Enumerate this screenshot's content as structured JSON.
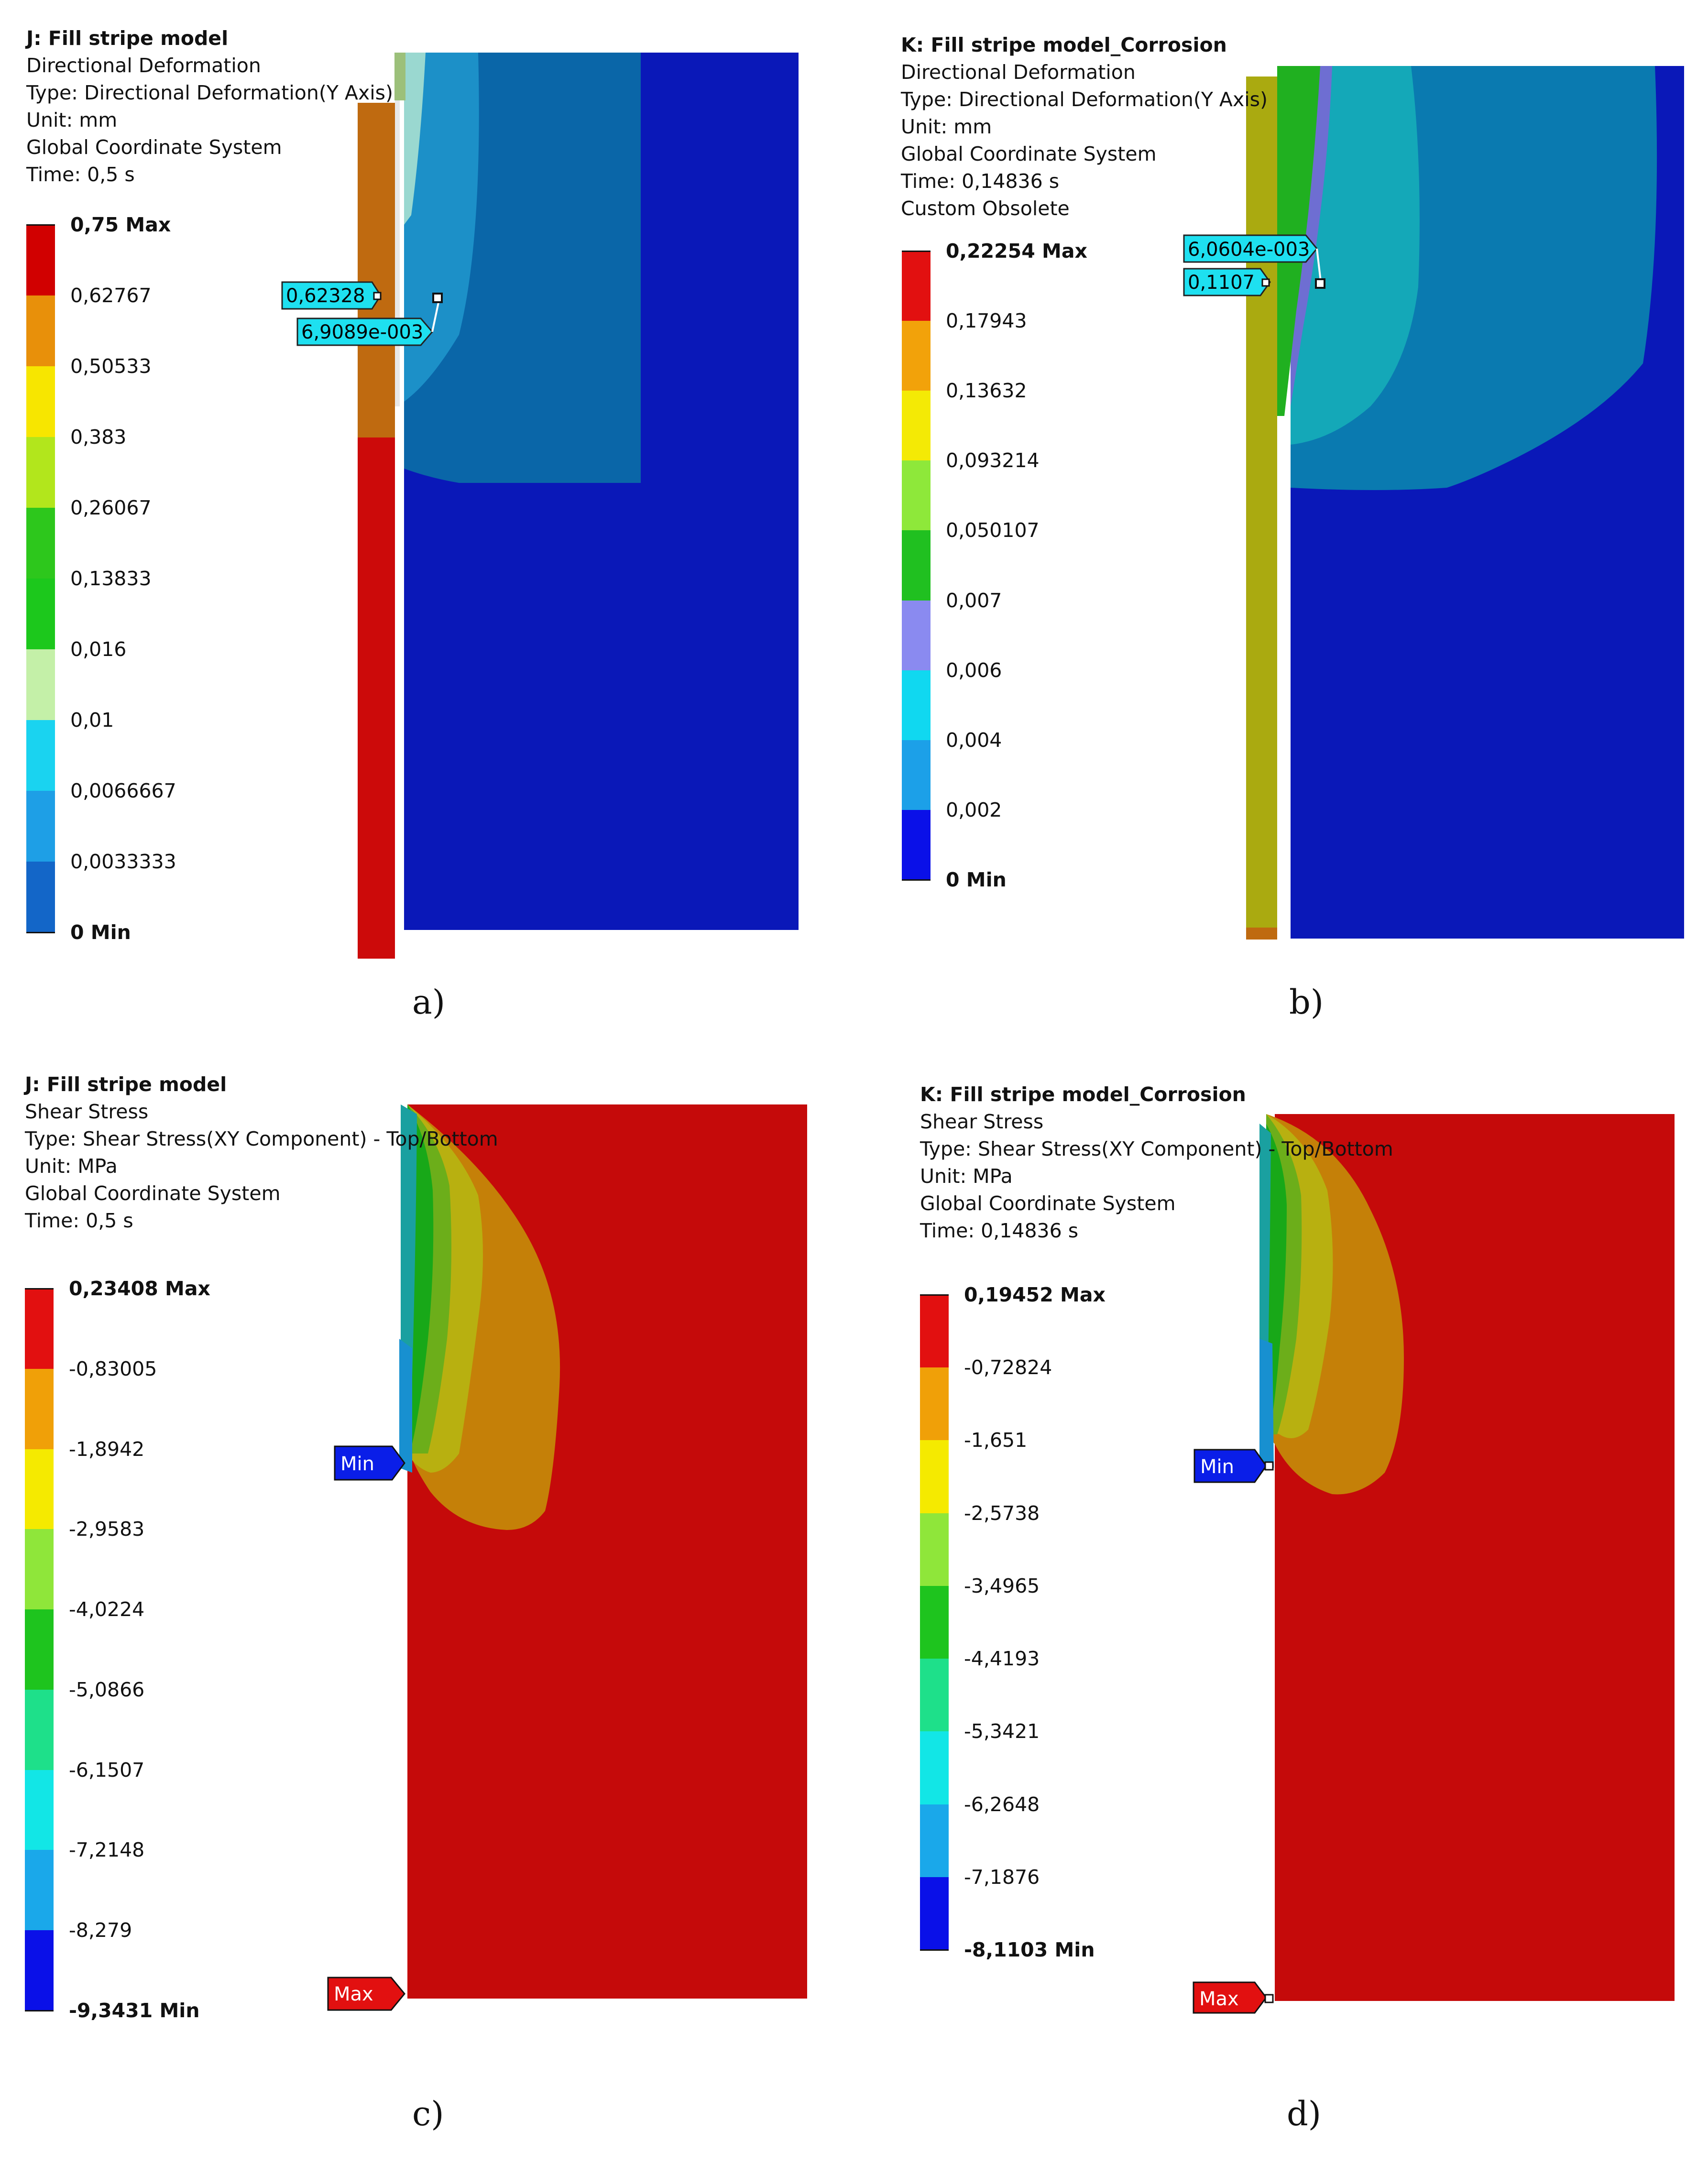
{
  "panels": {
    "a": {
      "info": [
        "J: Fill stripe model",
        "Directional Deformation",
        "Type: Directional Deformation(Y Axis)",
        "Unit: mm",
        "Global Coordinate System",
        "Time: 0,5 s"
      ],
      "legend_labels": [
        "0,75 Max",
        "0,62767",
        "0,50533",
        "0,383",
        "0,26067",
        "0,13833",
        "0,016",
        "0,01",
        "0,0066667",
        "0,0033333",
        "0 Min"
      ],
      "legend_colors": [
        "#d10000",
        "#e8900a",
        "#f7e600",
        "#b2e61c",
        "#2dc71c",
        "#1cc81c",
        "#c4f0a8",
        "#1ad3f0",
        "#1e9fe6",
        "#1366c8",
        "#0a18d8"
      ],
      "probes": [
        "0,62328",
        "6,9089e-003"
      ],
      "subfig": "a)"
    },
    "b": {
      "info": [
        "K: Fill stripe model_Corrosion",
        "Directional Deformation",
        "Type: Directional Deformation(Y Axis)",
        "Unit: mm",
        "Global Coordinate System",
        "Time: 0,14836 s",
        "Custom Obsolete"
      ],
      "legend_labels": [
        "0,22254 Max",
        "0,17943",
        "0,13632",
        "0,093214",
        "0,050107",
        "0,007",
        "0,006",
        "0,004",
        "0,002",
        "0 Min"
      ],
      "legend_colors": [
        "#e21010",
        "#f2a20a",
        "#f4ea05",
        "#8ee83a",
        "#20c020",
        "#8a8af0",
        "#10d8f0",
        "#1ca0e8",
        "#0a10e8"
      ],
      "probes": [
        "6,0604e-003",
        "0,1107"
      ],
      "subfig": "b)"
    },
    "c": {
      "info": [
        "J: Fill stripe model",
        "Shear Stress",
        "Type: Shear Stress(XY Component) - Top/Bottom",
        "Unit: MPa",
        "Global Coordinate System",
        "Time: 0,5 s"
      ],
      "legend_labels": [
        "0,23408 Max",
        "-0,83005",
        "-1,8942",
        "-2,9583",
        "-4,0224",
        "-5,0866",
        "-6,1507",
        "-7,2148",
        "-8,279",
        "-9,3431 Min"
      ],
      "legend_colors": [
        "#e21010",
        "#f0a008",
        "#f5ea00",
        "#8fe63a",
        "#1ec41e",
        "#1ee08a",
        "#12e6e6",
        "#1aa8ea",
        "#0a10e8"
      ],
      "probes": [
        "Min",
        "Max"
      ],
      "subfig": "c)"
    },
    "d": {
      "info": [
        "K: Fill stripe model_Corrosion",
        "Shear Stress",
        "Type: Shear Stress(XY Component) - Top/Bottom",
        "Unit: MPa",
        "Global Coordinate System",
        "Time: 0,14836 s"
      ],
      "legend_labels": [
        "0,19452 Max",
        "-0,72824",
        "-1,651",
        "-2,5738",
        "-3,4965",
        "-4,4193",
        "-5,3421",
        "-6,2648",
        "-7,1876",
        "-8,1103 Min"
      ],
      "legend_colors": [
        "#e21010",
        "#f0a008",
        "#f5ea00",
        "#8fe63a",
        "#1ec41e",
        "#1ee08a",
        "#12e6e6",
        "#1aa8ea",
        "#0a10e8"
      ],
      "probes": [
        "Min",
        "Max"
      ],
      "subfig": "d)"
    }
  }
}
